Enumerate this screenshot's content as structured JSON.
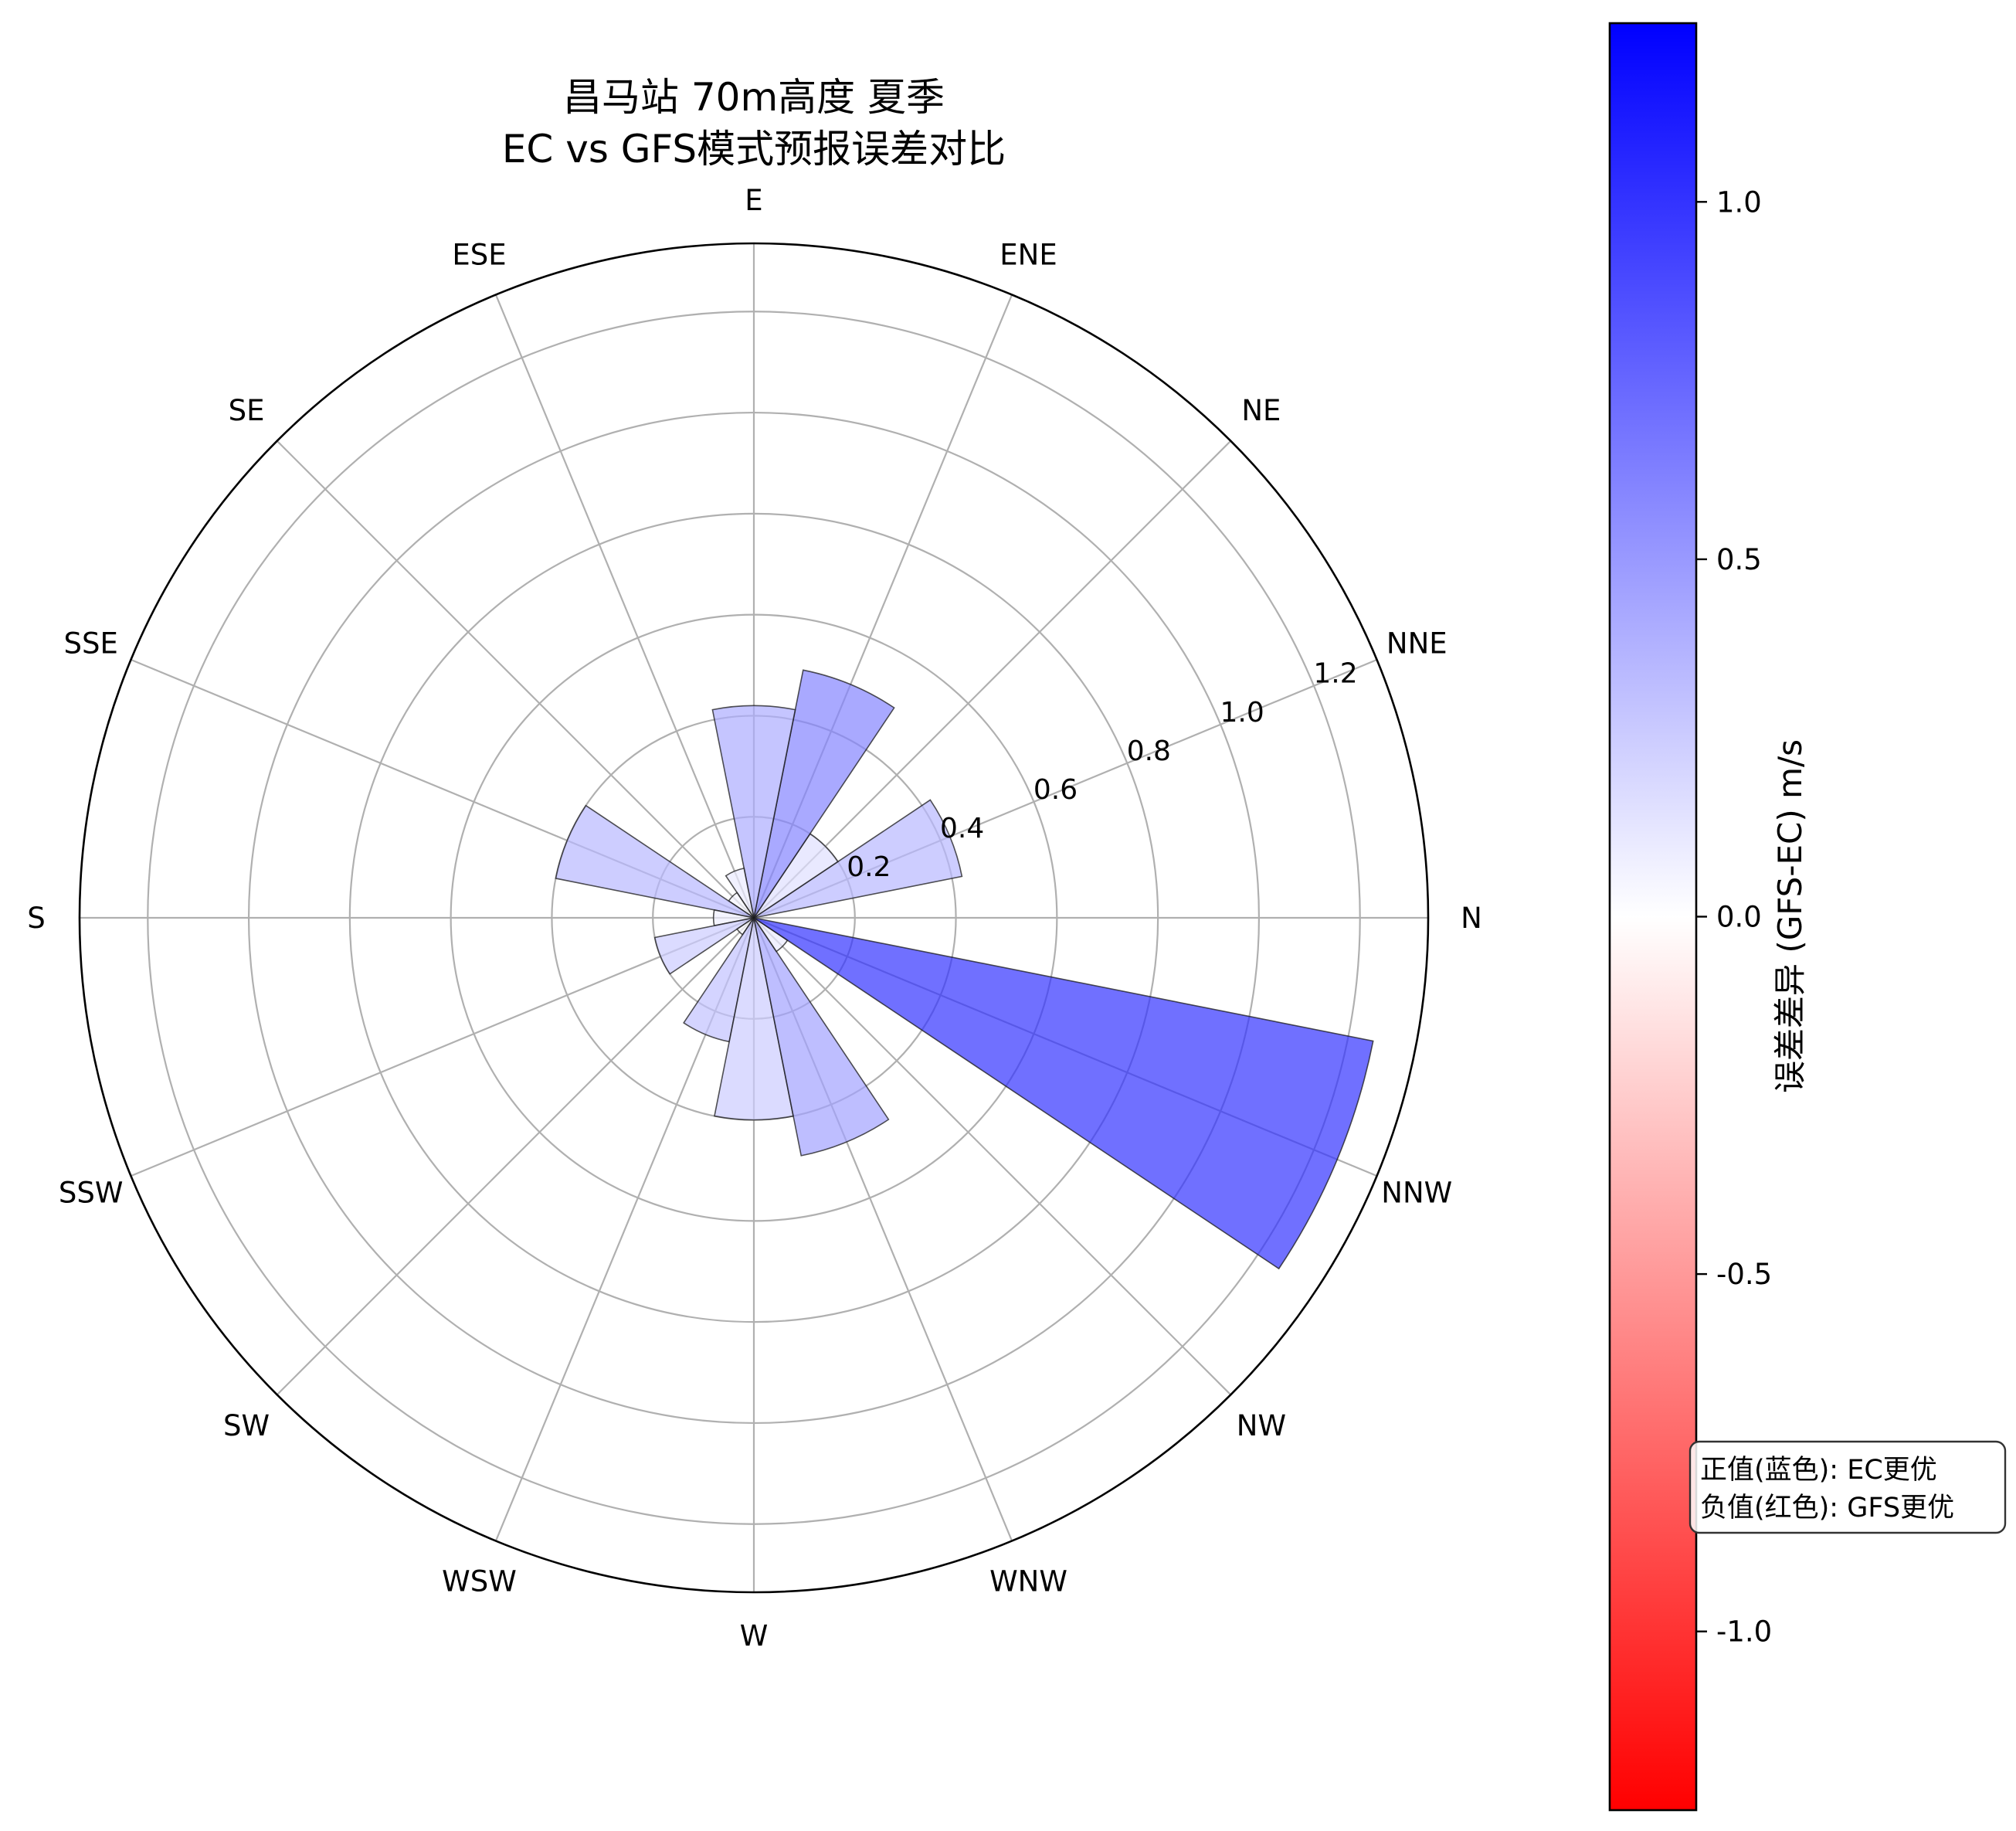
{
  "chart_data": {
    "type": "polar-bar",
    "title_line1": "昌马站 70m高度 夏季",
    "title_line2": "EC vs GFS模式预报误差对比",
    "directions": [
      "N",
      "NNE",
      "NE",
      "ENE",
      "E",
      "ESE",
      "SE",
      "SSE",
      "S",
      "SSW",
      "SW",
      "WSW",
      "W",
      "WNW",
      "NW",
      "NNW"
    ],
    "values": [
      0.0,
      0.42,
      0.2,
      0.5,
      0.42,
      0.1,
      0.06,
      0.4,
      0.08,
      0.2,
      0.04,
      0.25,
      0.4,
      0.48,
      0.08,
      1.25
    ],
    "diffs": [
      0.0,
      0.35,
      0.15,
      0.6,
      0.4,
      0.1,
      0.05,
      0.35,
      0.08,
      0.25,
      0.03,
      0.3,
      0.25,
      0.45,
      0.1,
      1.0
    ],
    "radial_ticks": [
      0.2,
      0.4,
      0.6,
      0.8,
      1.0,
      1.2
    ],
    "radial_tick_labels": [
      "0.2",
      "0.4",
      "0.6",
      "0.8",
      "1.0",
      "1.2"
    ],
    "rmax": 1.335,
    "grid": true,
    "colorbar": {
      "label": "误差差异 (GFS-EC) m/s",
      "vmin": -1.25,
      "vmax": 1.25,
      "ticks": [
        1.0,
        0.5,
        0.0,
        -0.5,
        -1.0
      ],
      "tick_labels": [
        "1.0",
        "0.5",
        "0.0",
        "-0.5",
        "-1.0"
      ],
      "color_min": "#ff0000",
      "color_mid": "#ffffff",
      "color_max": "#0000ff"
    },
    "annotation_line1": "正值(蓝色): EC更优",
    "annotation_line2": "负值(红色): GFS更优"
  }
}
